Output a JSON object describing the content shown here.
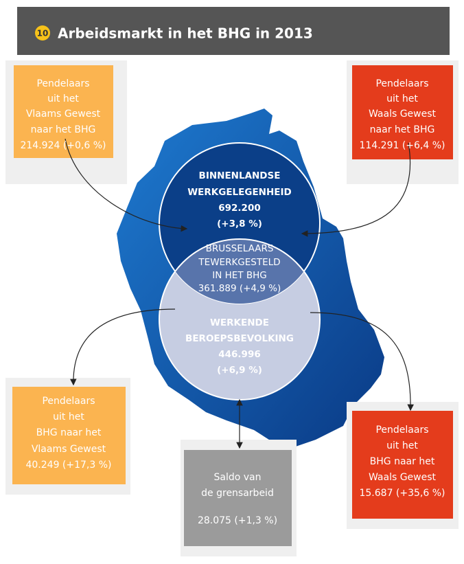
{
  "header": {
    "badge": "10",
    "title": "Arbeidsmarkt in het BHG in 2013"
  },
  "boxes": [
    {
      "lines": [
        "Pendelaars",
        "uit het",
        "Vlaams Gewest",
        "naar het BHG",
        "214.924 (+0,6 %)"
      ]
    },
    {
      "lines": [
        "Pendelaars",
        "uit het",
        "Waals Gewest",
        "naar het BHG",
        "114.291 (+6,4 %)"
      ]
    },
    {
      "lines": [
        "Pendelaars",
        "uit het",
        "BHG naar het",
        "Vlaams Gewest",
        "40.249 (+17,3 %)"
      ]
    },
    {
      "lines": [
        "Pendelaars",
        "uit het",
        "BHG naar het",
        "Waals Gewest",
        "15.687 (+35,6 %)"
      ]
    },
    {
      "lines": [
        "Saldo van",
        "de grensarbeid",
        "28.075 (+1,3 %)"
      ]
    }
  ],
  "circles": [
    {
      "lines": [
        "BINNENLANDSE",
        "WERKGELEGENHEID",
        "692.200",
        "(+3,8 %)"
      ]
    },
    {
      "lines": [
        "BRUSSELAARS",
        "TEWERKGESTELD",
        "IN HET BHG",
        "361.889 (+4,9 %)"
      ]
    },
    {
      "lines": [
        "WERKENDE",
        "BEROEPSBEVOLKING",
        "446.996",
        "(+6,9 %)"
      ]
    }
  ]
}
